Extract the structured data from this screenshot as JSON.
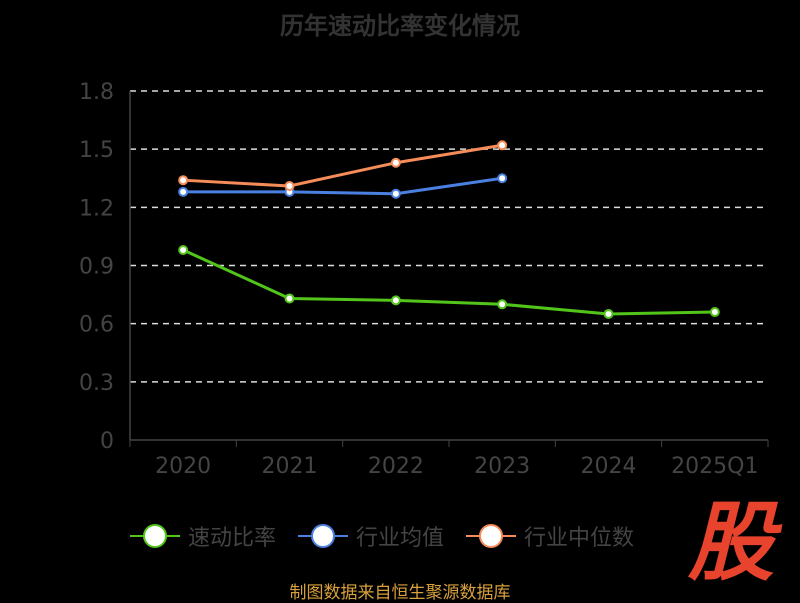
{
  "chart_data": {
    "type": "line",
    "title": "历年速动比率变化情况",
    "categories": [
      "2020",
      "2021",
      "2022",
      "2023",
      "2024",
      "2025Q1"
    ],
    "ylim": [
      0,
      1.8
    ],
    "yticks": [
      "0",
      "0.3",
      "0.6",
      "0.9",
      "1.2",
      "1.5",
      "1.8"
    ],
    "grid": true,
    "legend_position": "bottom",
    "series": [
      {
        "name": "速动比率",
        "color": "#52c41a",
        "values": [
          0.98,
          0.73,
          0.72,
          0.7,
          0.65,
          0.66
        ]
      },
      {
        "name": "行业均值",
        "color": "#4a80e0",
        "values": [
          1.28,
          1.28,
          1.27,
          1.35,
          null,
          null
        ]
      },
      {
        "name": "行业中位数",
        "color": "#f58c5a",
        "values": [
          1.34,
          1.31,
          1.43,
          1.52,
          null,
          null
        ]
      }
    ]
  },
  "source": "制图数据来自恒生聚源数据库",
  "logo": "股"
}
